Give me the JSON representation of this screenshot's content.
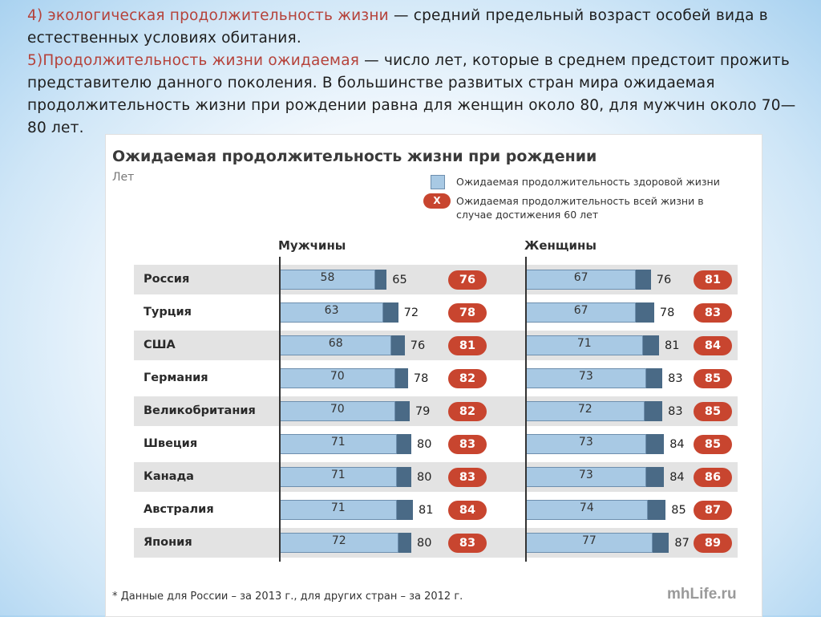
{
  "intro": {
    "p1_highlight": "4) экологическая продолжительность жизни",
    "p1_rest": " — средний предельный возраст особей вида в естественных условиях обитания.",
    "p2_highlight": "5)Продолжительность жизни ожидаемая",
    "p2_rest": " — число лет, которые в среднем предстоит прожить представителю данного поколения. В большинстве развитых стран мира ожидаемая продолжительность жизни при рождении равна для женщин  около 80, для мужчин около 70—80  лет."
  },
  "chart_data": {
    "type": "bar",
    "title": "Ожидаемая продолжительность жизни при рождении",
    "units": "Лет",
    "legend": {
      "healthy": "Ожидаемая продолжительность здоровой жизни",
      "total_at_60": "Ожидаемая продолжительность всей жизни в случае достижения 60 лет",
      "marker": "X"
    },
    "panels": [
      "Мужчины",
      "Женщины"
    ],
    "categories": [
      "Россия",
      "Турция",
      "США",
      "Германия",
      "Великобритания",
      "Швеция",
      "Канада",
      "Австралия",
      "Япония"
    ],
    "series": [
      {
        "name": "Мужчины",
        "healthy": [
          58,
          63,
          68,
          70,
          70,
          71,
          71,
          71,
          72
        ],
        "total": [
          65,
          72,
          76,
          78,
          79,
          80,
          80,
          81,
          80
        ],
        "at_60": [
          76,
          78,
          81,
          82,
          82,
          83,
          83,
          84,
          83
        ]
      },
      {
        "name": "Женщины",
        "healthy": [
          67,
          67,
          71,
          73,
          72,
          73,
          73,
          74,
          77
        ],
        "total": [
          76,
          78,
          81,
          83,
          83,
          84,
          84,
          85,
          87
        ],
        "at_60": [
          81,
          83,
          84,
          85,
          85,
          85,
          86,
          87,
          89
        ]
      }
    ],
    "colors": {
      "healthy": "#a8c9e4",
      "extra": "#4a6a86",
      "marker": "#c8452f"
    },
    "footnote": "* Данные для России – за 2013 г., для других стран – за 2012 г.",
    "source": "mhLife.ru"
  }
}
